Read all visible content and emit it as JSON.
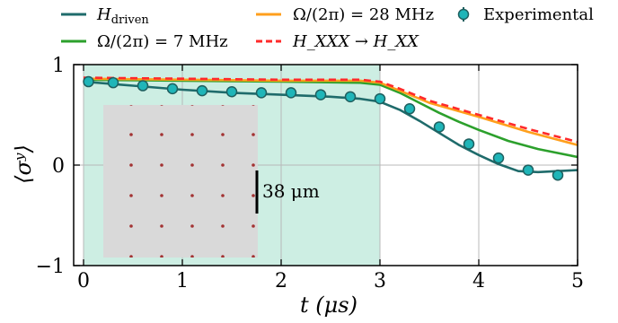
{
  "chart_data": {
    "type": "line",
    "xlabel": "t (μs)",
    "ylabel": "⟨σʸ⟩",
    "xlim": [
      -0.1,
      5
    ],
    "ylim": [
      -1,
      1
    ],
    "xticks": [
      0,
      1,
      2,
      3,
      4,
      5
    ],
    "yticks": [
      -1,
      0,
      1
    ],
    "xtick_labels": [
      "0",
      "1",
      "2",
      "3",
      "4",
      "5"
    ],
    "ytick_labels": [
      "−1",
      "0",
      "1"
    ],
    "grid": true,
    "legend": {
      "placement": "top",
      "columns": 3
    },
    "shaded_region": {
      "x": [
        0,
        3
      ],
      "color": "#cdeee3"
    },
    "inset": {
      "scale_bar_label": "38 μm",
      "description": "atom array image"
    },
    "series": [
      {
        "name": "H_driven",
        "legend_main": "H",
        "legend_sub": "driven",
        "color": "#1f6b6b",
        "style": "solid",
        "x": [
          0,
          0.5,
          1.0,
          1.5,
          2.0,
          2.5,
          2.8,
          3.0,
          3.2,
          3.4,
          3.6,
          3.8,
          4.0,
          4.2,
          4.4,
          4.6,
          4.8,
          5.0
        ],
        "y": [
          0.83,
          0.79,
          0.75,
          0.72,
          0.7,
          0.68,
          0.66,
          0.63,
          0.55,
          0.44,
          0.32,
          0.2,
          0.1,
          0.01,
          -0.06,
          -0.07,
          -0.06,
          -0.05
        ]
      },
      {
        "name": "Ω/(2π) = 7 MHz",
        "color": "#2ca02c",
        "style": "solid",
        "x": [
          0,
          1,
          2,
          2.8,
          3.0,
          3.2,
          3.4,
          3.6,
          3.8,
          4.0,
          4.3,
          4.6,
          5.0
        ],
        "y": [
          0.85,
          0.84,
          0.83,
          0.82,
          0.8,
          0.72,
          0.62,
          0.52,
          0.43,
          0.35,
          0.24,
          0.16,
          0.08
        ]
      },
      {
        "name": "Ω/(2π) = 28 MHz",
        "color": "#ff9f1c",
        "style": "solid",
        "x": [
          0,
          1,
          2,
          2.8,
          3.0,
          3.2,
          3.5,
          4.0,
          4.5,
          5.0
        ],
        "y": [
          0.86,
          0.85,
          0.84,
          0.84,
          0.82,
          0.74,
          0.62,
          0.48,
          0.33,
          0.2
        ]
      },
      {
        "name": "H_XXX → H_XX",
        "color": "#ff2a2a",
        "style": "dashed",
        "x": [
          0,
          1,
          2,
          2.8,
          3.0,
          3.2,
          3.5,
          4.0,
          4.5,
          5.0
        ],
        "y": [
          0.87,
          0.86,
          0.85,
          0.85,
          0.83,
          0.76,
          0.64,
          0.5,
          0.36,
          0.23
        ]
      },
      {
        "name": "Experimental",
        "color": "#1fb5b8",
        "edge_color": "#1f5f5f",
        "style": "markers",
        "x": [
          0.05,
          0.3,
          0.6,
          0.9,
          1.2,
          1.5,
          1.8,
          2.1,
          2.4,
          2.7,
          3.0,
          3.3,
          3.6,
          3.9,
          4.2,
          4.5,
          4.8
        ],
        "y": [
          0.83,
          0.82,
          0.79,
          0.76,
          0.74,
          0.73,
          0.72,
          0.72,
          0.7,
          0.68,
          0.66,
          0.56,
          0.38,
          0.21,
          0.07,
          -0.05,
          -0.1
        ]
      }
    ]
  }
}
